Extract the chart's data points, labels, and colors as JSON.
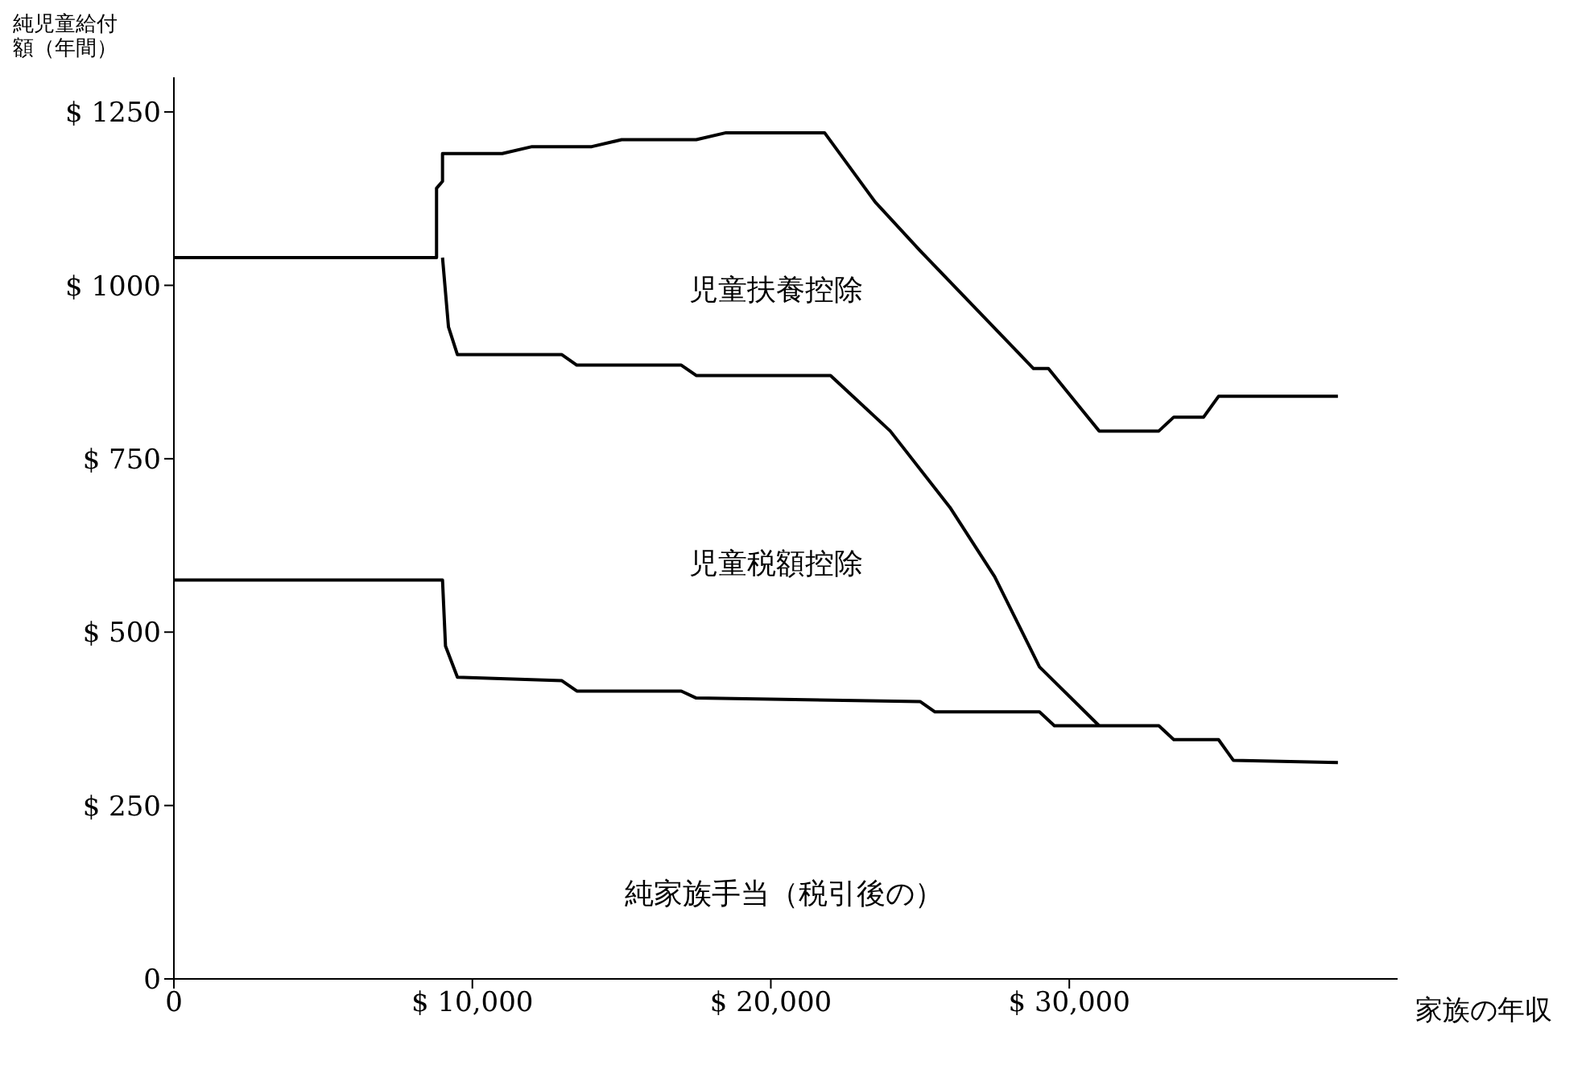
{
  "chart_data": {
    "type": "line",
    "ylabel": "純児童給付額（年間）",
    "xlabel": "家族の年収",
    "xlim": [
      0,
      41000
    ],
    "xticks": [
      0,
      {
        "value": 10000,
        "label": "$ 10,000"
      },
      {
        "value": 20000,
        "label": "$ 20,000"
      },
      {
        "value": 30000,
        "label": "$ 30,000"
      }
    ],
    "ylim": [
      0,
      1300
    ],
    "yticks": [
      0,
      {
        "value": 250,
        "label": "$ 250"
      },
      {
        "value": 500,
        "label": "$ 500"
      },
      {
        "value": 750,
        "label": "$ 750"
      },
      {
        "value": 1000,
        "label": "$ 1000"
      },
      {
        "value": 1250,
        "label": "$ 1250"
      }
    ],
    "grid": false,
    "legend": false,
    "marker": "none",
    "line_style": "solid",
    "series": [
      {
        "color": "#000000",
        "x": [
          0,
          8800,
          8800,
          9000,
          9000,
          11000,
          12000,
          14000,
          15000,
          17500,
          18500,
          21800,
          23500,
          25000,
          28800,
          29300,
          31000,
          33000,
          33500,
          34500,
          35000,
          39000
        ],
        "values": [
          1040,
          1040,
          1140,
          1150,
          1190,
          1190,
          1200,
          1200,
          1210,
          1210,
          1220,
          1220,
          1120,
          1050,
          880,
          880,
          790,
          790,
          810,
          810,
          840,
          840
        ]
      },
      {
        "color": "#000000",
        "x": [
          9000,
          9200,
          9500,
          13000,
          13500,
          17000,
          17500,
          22000,
          24000,
          26000,
          27500,
          29000,
          31000
        ],
        "values": [
          1040,
          940,
          900,
          900,
          885,
          885,
          870,
          870,
          790,
          680,
          580,
          450,
          365
        ]
      },
      {
        "color": "#000000",
        "x": [
          0,
          9000,
          9100,
          9500,
          13000,
          13500,
          17000,
          17500,
          25000,
          25500,
          29000,
          29500,
          33000,
          33500,
          35000,
          35500,
          39000
        ],
        "values": [
          575,
          575,
          480,
          435,
          430,
          415,
          415,
          405,
          400,
          385,
          385,
          365,
          365,
          345,
          345,
          315,
          312
        ]
      }
    ],
    "annotations": [
      "児童扶養控除",
      "児童税額控除",
      "純家族手当（税引後の）"
    ]
  }
}
